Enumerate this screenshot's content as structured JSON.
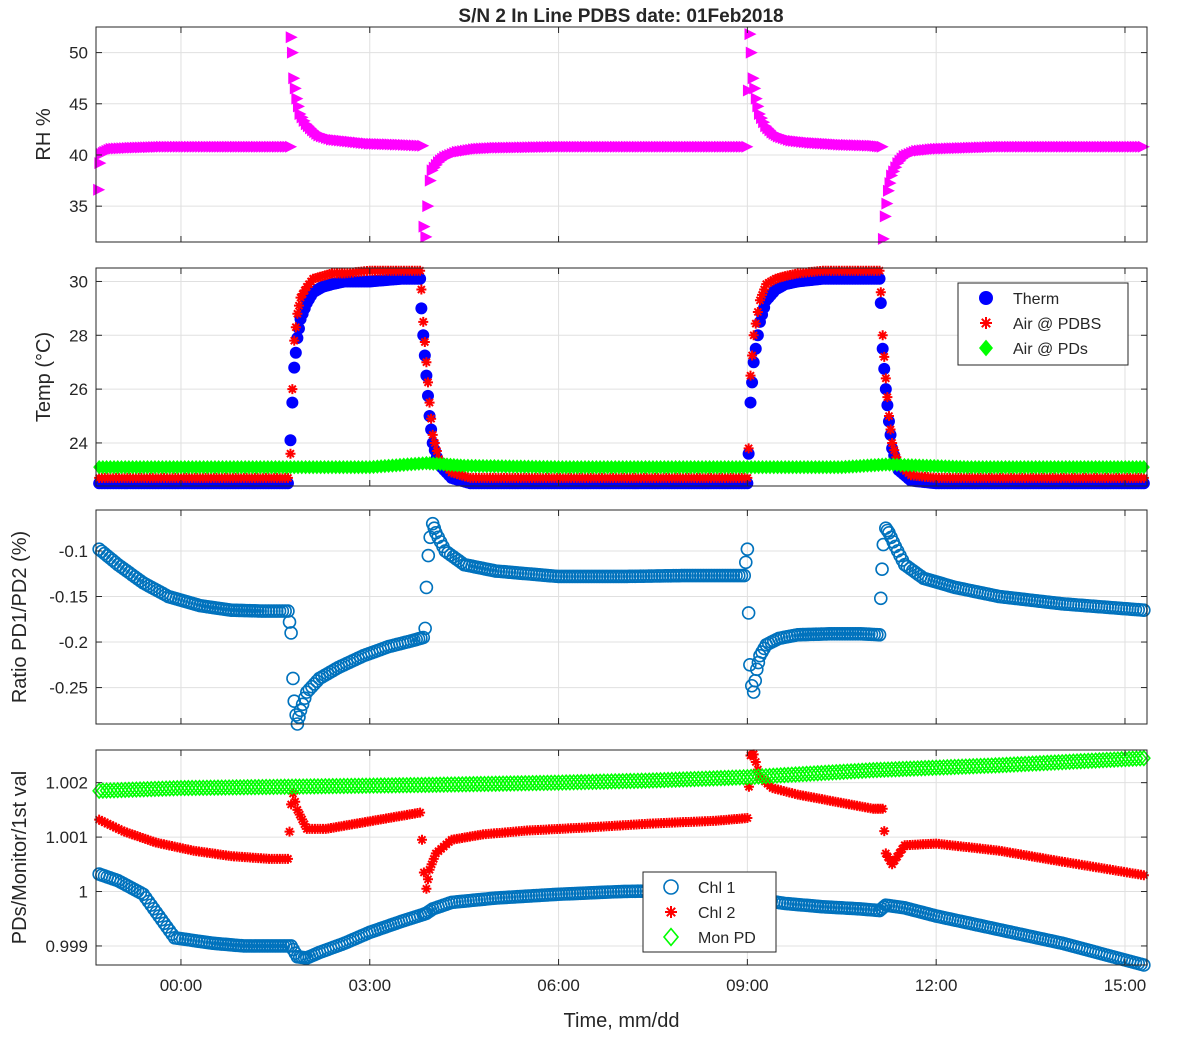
{
  "figure_title": "S/N 2 In Line PDBS date: 01Feb2018",
  "colors": {
    "magenta": "#ff00ff",
    "blue": "#0000ff",
    "red": "#ff0000",
    "green": "#00ff00",
    "steel_blue": "#0072bd",
    "grid": "#e0e0e0",
    "axis": "#262626"
  },
  "chart_data": [
    {
      "type": "scatter",
      "panel": "rh",
      "xlabel": "",
      "ylabel": "RH %",
      "xlim": [
        -1.35,
        15.35
      ],
      "ylim": [
        31.5,
        52.5
      ],
      "yticks": [
        35,
        40,
        45,
        50
      ],
      "ytick_labels": [
        "35",
        "40",
        "45",
        "50"
      ],
      "grid": true,
      "series": [
        {
          "marker": "triangle-right",
          "color": "#ff00ff",
          "x": [
            -1.3,
            -1.28,
            -1.25,
            -1.2,
            -1.1,
            -0.8,
            -0.3,
            0.5,
            1.0,
            1.5,
            1.75,
            1.76,
            1.78,
            1.8,
            1.85,
            1.9,
            2.0,
            2.1,
            2.2,
            2.4,
            2.7,
            3.0,
            3.5,
            3.85,
            3.87,
            3.9,
            3.93,
            3.97,
            4.0,
            4.1,
            4.2,
            4.4,
            4.7,
            5.0,
            6.0,
            7.0,
            8.0,
            9.0,
            9.05,
            9.07,
            9.1,
            9.15,
            9.2,
            9.3,
            9.4,
            9.5,
            9.7,
            10.0,
            10.5,
            11.0,
            11.15,
            11.17,
            11.2,
            11.25,
            11.3,
            11.4,
            11.5,
            11.7,
            12.0,
            13.0,
            14.0,
            15.0,
            15.3
          ],
          "y": [
            36.6,
            39.2,
            40.1,
            40.3,
            40.6,
            40.7,
            40.8,
            40.8,
            40.8,
            40.8,
            40.8,
            51.5,
            50.0,
            47.5,
            45.5,
            44.0,
            43.0,
            42.4,
            41.9,
            41.5,
            41.3,
            41.1,
            41.0,
            40.9,
            33.0,
            32.0,
            35.0,
            37.5,
            38.5,
            39.3,
            39.8,
            40.3,
            40.6,
            40.7,
            40.8,
            40.8,
            40.8,
            40.8,
            51.8,
            50.0,
            47.5,
            45.5,
            44.0,
            42.8,
            42.2,
            41.8,
            41.4,
            41.2,
            41.0,
            40.9,
            40.8,
            31.8,
            34.0,
            36.5,
            38.0,
            39.2,
            39.9,
            40.4,
            40.6,
            40.8,
            40.8,
            40.8,
            40.8
          ]
        }
      ]
    },
    {
      "type": "scatter",
      "panel": "temp",
      "xlabel": "",
      "ylabel": "Temp (°C)",
      "xlim": [
        -1.35,
        15.35
      ],
      "ylim": [
        22.4,
        30.5
      ],
      "yticks": [
        24,
        26,
        28,
        30
      ],
      "ytick_labels": [
        "24",
        "26",
        "28",
        "30"
      ],
      "grid": true,
      "legend_position": "top-right",
      "series": [
        {
          "name": "Therm",
          "marker": "filled-circle",
          "color": "#0000ff",
          "x": [
            -1.3,
            0.0,
            1.0,
            1.7,
            1.74,
            1.77,
            1.8,
            1.85,
            1.9,
            2.0,
            2.1,
            2.25,
            2.4,
            2.6,
            3.0,
            3.5,
            3.8,
            3.82,
            3.85,
            3.9,
            3.95,
            4.0,
            4.1,
            4.3,
            4.6,
            5.0,
            7.0,
            9.0,
            9.02,
            9.05,
            9.1,
            9.2,
            9.3,
            9.45,
            9.6,
            9.8,
            10.2,
            10.8,
            11.1,
            11.12,
            11.15,
            11.2,
            11.25,
            11.3,
            11.4,
            11.6,
            12.0,
            13.5,
            15.3
          ],
          "y": [
            22.5,
            22.5,
            22.5,
            22.5,
            24.1,
            25.5,
            26.8,
            27.9,
            28.6,
            29.2,
            29.6,
            29.8,
            29.9,
            30.0,
            30.0,
            30.1,
            30.1,
            29.0,
            28.0,
            26.5,
            25.0,
            24.0,
            23.2,
            22.7,
            22.5,
            22.5,
            22.5,
            22.5,
            23.6,
            25.5,
            27.0,
            28.5,
            29.3,
            29.7,
            29.9,
            30.0,
            30.1,
            30.1,
            30.1,
            29.2,
            27.5,
            26.0,
            24.8,
            23.8,
            23.0,
            22.6,
            22.5,
            22.5,
            22.5
          ]
        },
        {
          "name": "Air @ PDBS",
          "marker": "asterisk",
          "color": "#ff0000",
          "x": [
            -1.3,
            0.0,
            1.0,
            1.7,
            1.74,
            1.77,
            1.8,
            1.85,
            1.9,
            2.0,
            2.1,
            2.25,
            2.4,
            2.6,
            3.0,
            3.5,
            3.8,
            3.82,
            3.85,
            3.9,
            3.95,
            4.0,
            4.1,
            4.3,
            4.6,
            5.0,
            7.0,
            9.0,
            9.02,
            9.05,
            9.1,
            9.2,
            9.3,
            9.45,
            9.6,
            9.8,
            10.2,
            10.8,
            11.1,
            11.12,
            11.15,
            11.2,
            11.25,
            11.3,
            11.4,
            11.6,
            12.0,
            13.5,
            15.3
          ],
          "y": [
            22.7,
            22.7,
            22.7,
            22.7,
            23.6,
            26.0,
            27.8,
            28.8,
            29.4,
            29.8,
            30.1,
            30.2,
            30.3,
            30.3,
            30.4,
            30.4,
            30.4,
            29.7,
            28.5,
            27.0,
            25.5,
            24.3,
            23.4,
            22.9,
            22.7,
            22.7,
            22.7,
            22.7,
            23.8,
            26.5,
            28.0,
            29.3,
            29.9,
            30.1,
            30.2,
            30.3,
            30.4,
            30.4,
            30.4,
            29.6,
            28.0,
            26.4,
            25.0,
            24.0,
            23.2,
            22.8,
            22.7,
            22.7,
            22.7
          ]
        },
        {
          "name": "Air @ PDs",
          "marker": "filled-diamond",
          "color": "#00ff00",
          "x": [
            -1.3,
            0.0,
            1.5,
            3.0,
            3.9,
            4.5,
            6.0,
            7.5,
            9.0,
            10.5,
            11.2,
            12.5,
            14.0,
            15.3
          ],
          "y": [
            23.1,
            23.1,
            23.1,
            23.1,
            23.25,
            23.15,
            23.1,
            23.1,
            23.1,
            23.1,
            23.2,
            23.1,
            23.1,
            23.1
          ]
        }
      ]
    },
    {
      "type": "scatter",
      "panel": "ratio",
      "xlabel": "",
      "ylabel": "Ratio PD1/PD2 (%)",
      "xlim": [
        -1.35,
        15.35
      ],
      "ylim": [
        -0.29,
        -0.055
      ],
      "yticks": [
        -0.25,
        -0.2,
        -0.15,
        -0.1
      ],
      "ytick_labels": [
        "-0.25",
        "-0.2",
        "-0.15",
        "-0.1"
      ],
      "grid": true,
      "series": [
        {
          "marker": "open-circle",
          "color": "#0072bd",
          "x": [
            -1.3,
            -1.0,
            -0.6,
            -0.2,
            0.3,
            0.8,
            1.3,
            1.7,
            1.75,
            1.78,
            1.8,
            1.83,
            1.85,
            1.9,
            2.0,
            2.2,
            2.5,
            2.9,
            3.3,
            3.7,
            3.85,
            3.88,
            3.9,
            3.93,
            3.96,
            4.0,
            4.05,
            4.2,
            4.5,
            5.0,
            6.0,
            7.0,
            8.0,
            8.95,
            9.0,
            9.02,
            9.04,
            9.07,
            9.1,
            9.15,
            9.2,
            9.3,
            9.5,
            9.8,
            10.3,
            10.8,
            11.1,
            11.12,
            11.14,
            11.16,
            11.2,
            11.25,
            11.35,
            11.5,
            11.8,
            12.3,
            13.0,
            14.0,
            15.3
          ],
          "y": [
            -0.098,
            -0.115,
            -0.135,
            -0.15,
            -0.16,
            -0.165,
            -0.166,
            -0.166,
            -0.19,
            -0.24,
            -0.265,
            -0.28,
            -0.29,
            -0.275,
            -0.255,
            -0.24,
            -0.228,
            -0.215,
            -0.205,
            -0.198,
            -0.195,
            -0.185,
            -0.14,
            -0.105,
            -0.085,
            -0.07,
            -0.08,
            -0.1,
            -0.115,
            -0.122,
            -0.128,
            -0.128,
            -0.127,
            -0.127,
            -0.098,
            -0.168,
            -0.225,
            -0.248,
            -0.255,
            -0.23,
            -0.215,
            -0.203,
            -0.196,
            -0.192,
            -0.191,
            -0.191,
            -0.192,
            -0.152,
            -0.12,
            -0.093,
            -0.075,
            -0.08,
            -0.095,
            -0.115,
            -0.13,
            -0.14,
            -0.15,
            -0.158,
            -0.165
          ]
        }
      ]
    },
    {
      "type": "scatter",
      "panel": "pds",
      "xlabel": "Time, mm/dd",
      "ylabel": "PDs/Monitor/1st val",
      "xlim": [
        -1.35,
        15.35
      ],
      "ylim": [
        0.99865,
        1.0026
      ],
      "yticks": [
        0.999,
        1.0,
        1.001,
        1.002
      ],
      "ytick_labels": [
        "0.999",
        "1",
        "1.001",
        "1.002"
      ],
      "xticks": [
        0,
        3,
        6,
        9,
        12,
        15
      ],
      "xtick_labels": [
        "00:00",
        "03:00",
        "06:00",
        "09:00",
        "12:00",
        "15:00"
      ],
      "grid": true,
      "legend_position": "bottom-center",
      "series": [
        {
          "name": "Chl 1",
          "marker": "open-circle",
          "color": "#0072bd",
          "x": [
            -1.3,
            -1.0,
            -0.6,
            -0.1,
            0.5,
            1.0,
            1.5,
            1.75,
            1.85,
            2.0,
            2.2,
            2.6,
            3.0,
            3.5,
            3.85,
            3.9,
            4.0,
            4.3,
            5.0,
            6.0,
            7.0,
            8.0,
            9.0,
            9.05,
            9.2,
            9.6,
            10.2,
            10.8,
            11.1,
            11.2,
            11.5,
            12.0,
            13.0,
            14.0,
            15.3
          ],
          "y": [
            1.00032,
            1.0002,
            0.99995,
            0.99915,
            0.99905,
            0.999,
            0.999,
            0.999,
            0.9988,
            0.99878,
            0.99888,
            0.99905,
            0.99925,
            0.99945,
            0.99958,
            0.9996,
            0.99968,
            0.9998,
            0.99988,
            0.99995,
            1.0,
            1.00002,
            1.00002,
            0.99975,
            0.99985,
            0.99978,
            0.99972,
            0.99968,
            0.99965,
            0.99975,
            0.9997,
            0.99955,
            0.9993,
            0.99905,
            0.99865
          ]
        },
        {
          "name": "Chl 2",
          "marker": "asterisk",
          "color": "#ff0000",
          "x": [
            -1.3,
            -0.9,
            -0.4,
            0.2,
            0.8,
            1.4,
            1.7,
            1.75,
            1.78,
            1.85,
            2.0,
            2.3,
            2.8,
            3.3,
            3.8,
            3.83,
            3.86,
            3.9,
            3.95,
            4.05,
            4.3,
            4.8,
            5.5,
            6.5,
            7.5,
            8.5,
            9.0,
            9.05,
            9.1,
            9.2,
            9.4,
            9.8,
            10.4,
            11.0,
            11.15,
            11.2,
            11.3,
            11.5,
            12.0,
            13.0,
            14.0,
            15.3
          ],
          "y": [
            1.00132,
            1.0011,
            1.0009,
            1.00075,
            1.00065,
            1.0006,
            1.0006,
            1.0016,
            1.0018,
            1.0015,
            1.00115,
            1.00115,
            1.00125,
            1.00135,
            1.00145,
            1.00095,
            1.00035,
            1.00005,
            1.0004,
            1.0007,
            1.00095,
            1.00105,
            1.00112,
            1.00118,
            1.00125,
            1.0013,
            1.00135,
            1.0025,
            1.00252,
            1.0021,
            1.0019,
            1.00178,
            1.00165,
            1.00152,
            1.00152,
            1.0007,
            1.0005,
            1.00085,
            1.00088,
            1.00075,
            1.00055,
            1.0003
          ]
        },
        {
          "name": "Mon PD",
          "marker": "open-diamond",
          "color": "#00ff00",
          "x": [
            -1.3,
            0.0,
            2.0,
            4.0,
            6.0,
            7.5,
            9.0,
            11.0,
            13.0,
            15.3
          ],
          "y": [
            1.00185,
            1.0019,
            1.00193,
            1.00196,
            1.002,
            1.00204,
            1.0021,
            1.00223,
            1.00232,
            1.00245
          ]
        }
      ]
    }
  ]
}
